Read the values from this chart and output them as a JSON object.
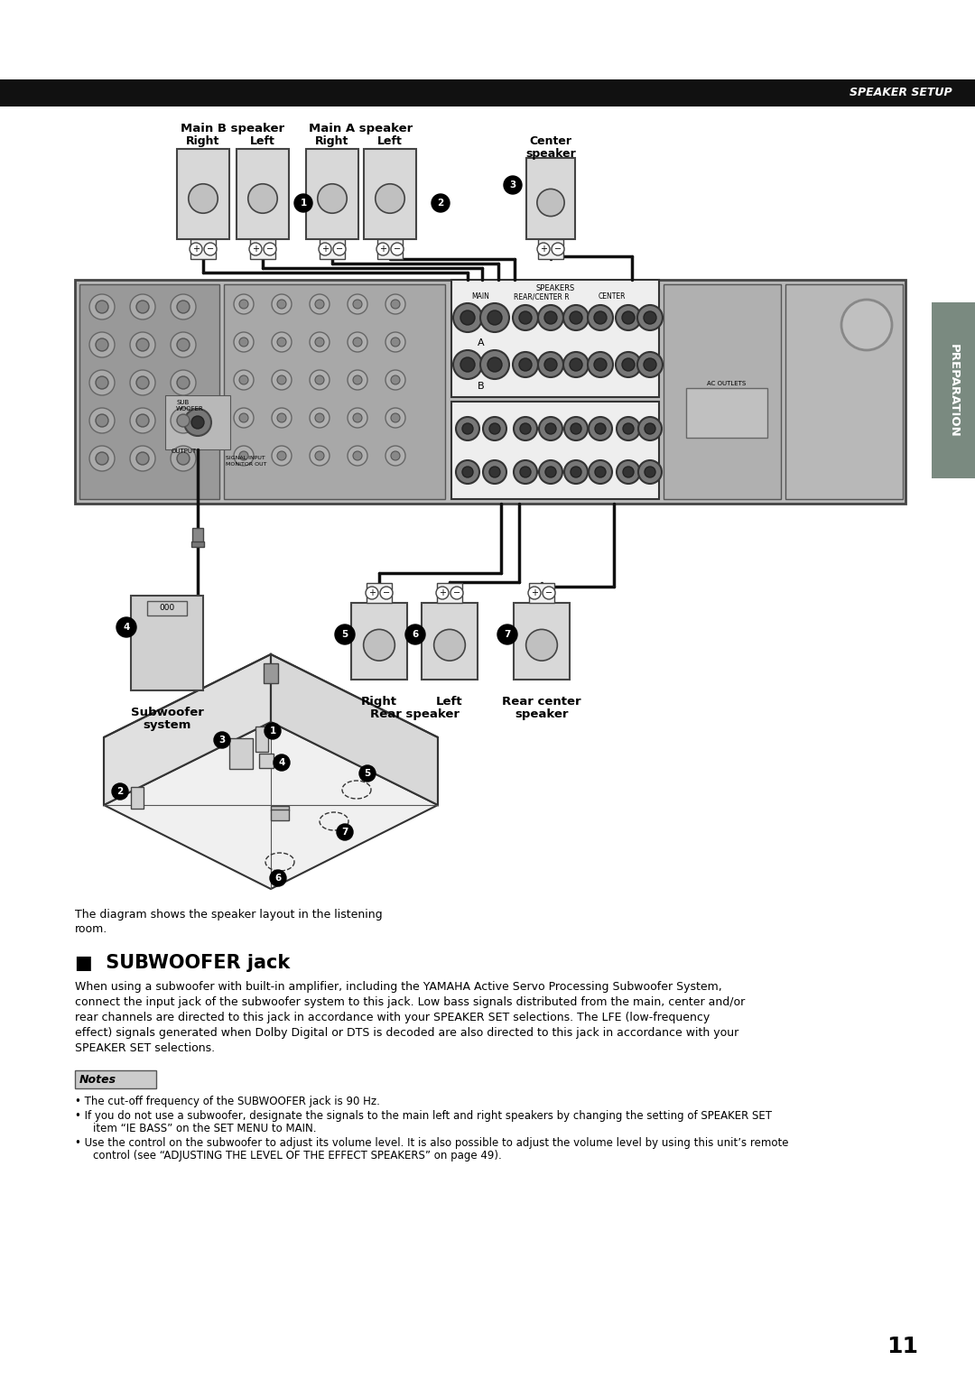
{
  "page_bg": "#ffffff",
  "header_bar_color": "#111111",
  "header_text": "SPEAKER SETUP",
  "header_text_color": "#ffffff",
  "tab_color": "#7a8a80",
  "tab_text": "PREPARATION",
  "tab_text_color": "#ffffff",
  "title": "SUBWOOFER jack",
  "body_text_lines": [
    "When using a subwoofer with built-in amplifier, including the YAMAHA Active Servo Processing Subwoofer System,",
    "connect the input jack of the subwoofer system to this jack. Low bass signals distributed from the main, center and/or",
    "rear channels are directed to this jack in accordance with your SPEAKER SET selections. The LFE (low-frequency",
    "effect) signals generated when Dolby Digital or DTS is decoded are also directed to this jack in accordance with your",
    "SPEAKER SET selections."
  ],
  "notes_header": "Notes",
  "note1": "The cut-off frequency of the SUBWOOFER jack is 90 Hz.",
  "note2": "If you do not use a subwoofer, designate the signals to the main left and right speakers by changing the setting of SPEAKER SET",
  "note2b": "item “IE BASS” on the SET MENU to MAIN.",
  "note3": "Use the control on the subwoofer to adjust its volume level. It is also possible to adjust the volume level by using this unit’s remote",
  "note3b": "control (see “ADJUSTING THE LEVEL OF THE EFFECT SPEAKERS” on page 49).",
  "page_number": "11",
  "diagram_caption_line1": "The diagram shows the speaker layout in the listening",
  "diagram_caption_line2": "room.",
  "receiver_color": "#aaaaaa",
  "speaker_color": "#cccccc",
  "line_color": "#111111",
  "bg_color": "#e8e8e8"
}
